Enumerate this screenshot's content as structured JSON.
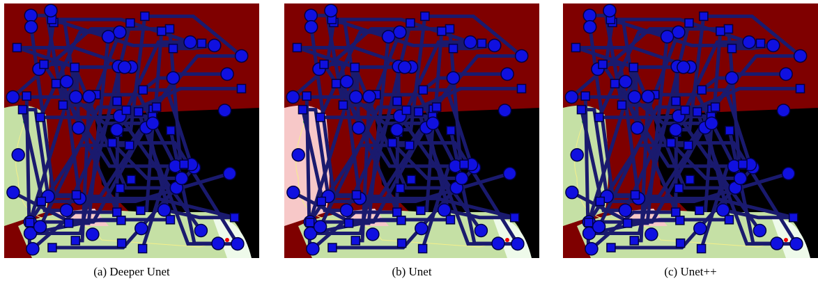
{
  "panels": [
    {
      "caption": "(a) Deeper Unet"
    },
    {
      "caption": "(b) Unet"
    },
    {
      "caption": "(c) Unet++"
    }
  ]
}
